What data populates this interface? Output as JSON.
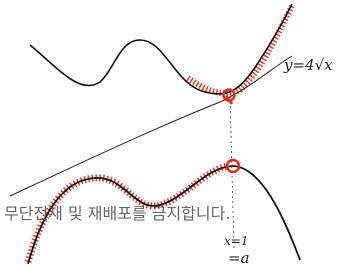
{
  "labels": {
    "curve_label": "y=4√x",
    "line_label_1": "x=1",
    "line_label_2": "=a"
  },
  "watermark": "무단전재 및 재배포를 금지합니다."
}
